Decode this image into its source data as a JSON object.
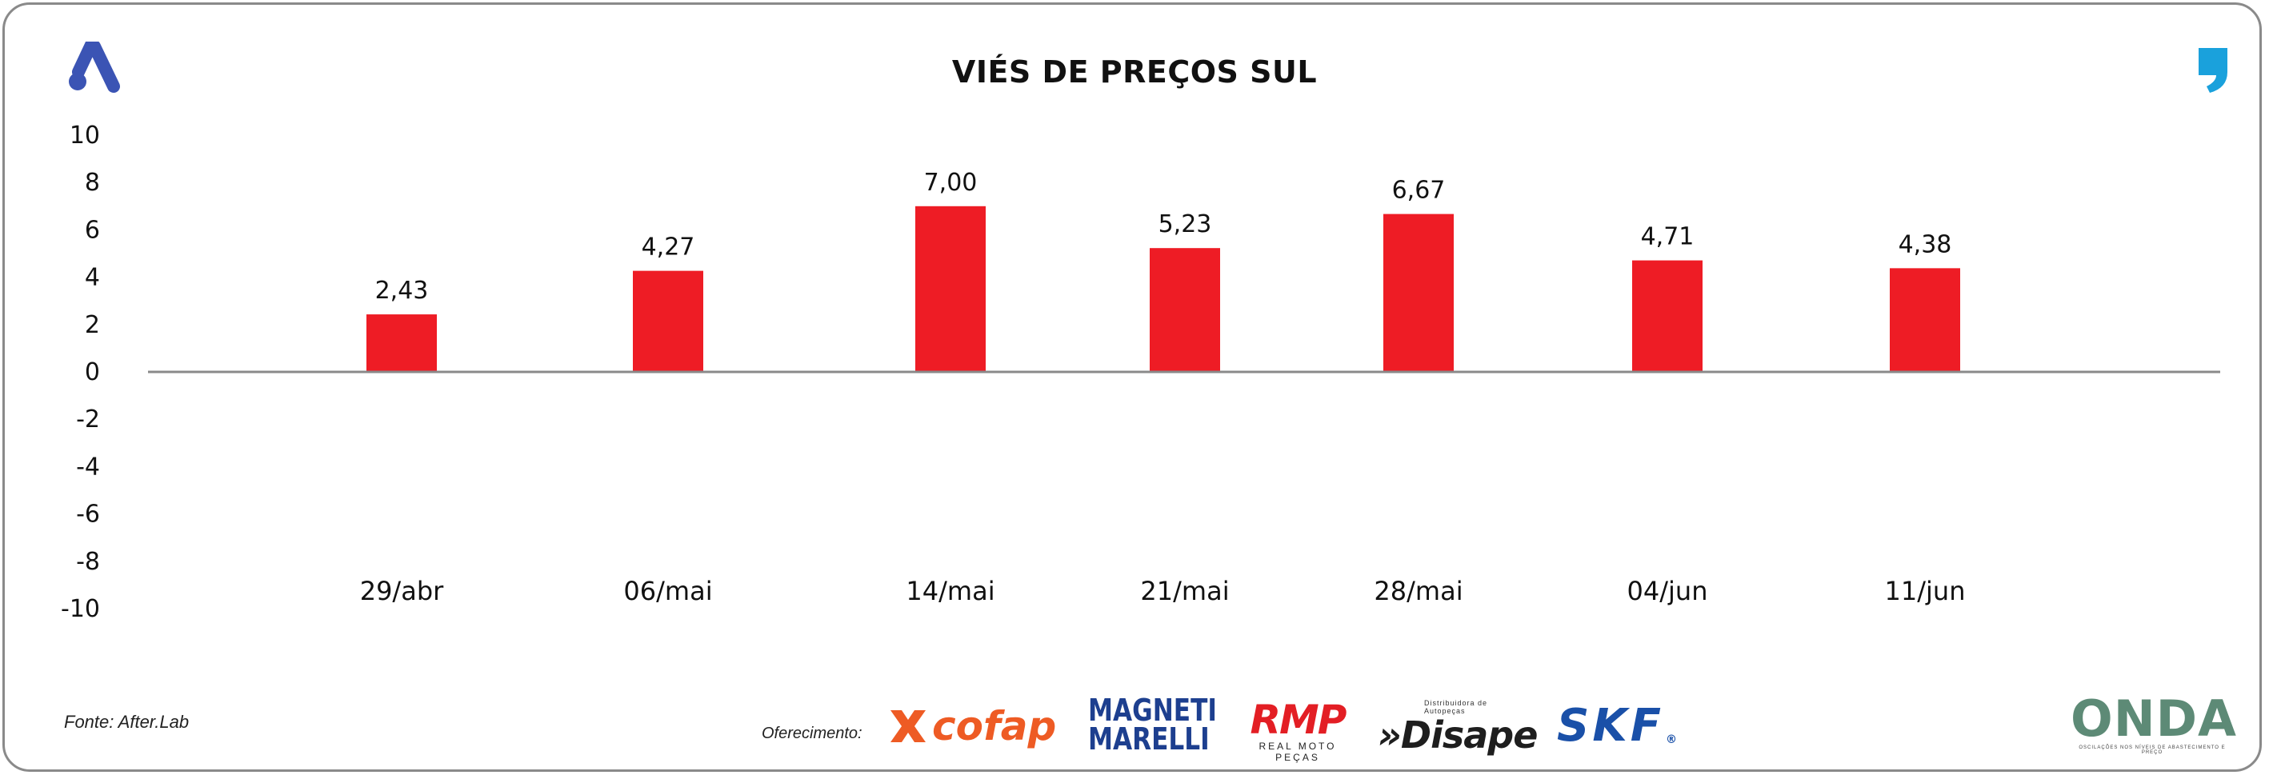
{
  "title": "VIÉS DE PREÇOS SUL",
  "source": "Fonte: After.Lab",
  "sponsors": {
    "label": "Oferecimento:",
    "cofap": "cofap",
    "magneti_line1": "MAGNETI",
    "magneti_line2": "MARELLI",
    "rmp": "RMP",
    "rmp_sub": "REAL MOTO PEÇAS",
    "disape_sub": "Distribuidora de Autopeças",
    "disape": "»Disape",
    "skf": "SKF",
    "skf_mark": "®",
    "onda": "ONDA",
    "onda_sub": "OSCILAÇÕES NOS NÍVEIS DE ABASTECIMENTO E PREÇO"
  },
  "icons": {
    "top_left": "a-logo-icon",
    "top_right": "quote-logo-icon"
  },
  "colors": {
    "bar": "#ee1c25",
    "axis": "#8a8a8a",
    "logo_a": "#3b54b4",
    "quote": "#1aa1dc"
  },
  "chart_data": {
    "type": "bar",
    "categories": [
      "29/abr",
      "06/mai",
      "14/mai",
      "21/mai",
      "28/mai",
      "04/jun",
      "11/jun"
    ],
    "values": [
      2.43,
      4.27,
      7.0,
      5.23,
      6.67,
      4.71,
      4.38
    ],
    "data_labels": [
      "2,43",
      "4,27",
      "7,00",
      "5,23",
      "6,67",
      "4,71",
      "4,38"
    ],
    "ylim": [
      -10,
      10
    ],
    "yticks": [
      10,
      8,
      6,
      4,
      2,
      0,
      -2,
      -4,
      -6,
      -8,
      -10
    ],
    "title": "VIÉS DE PREÇOS SUL",
    "xlabel": "",
    "ylabel": "",
    "grid": false,
    "legend": "none"
  }
}
